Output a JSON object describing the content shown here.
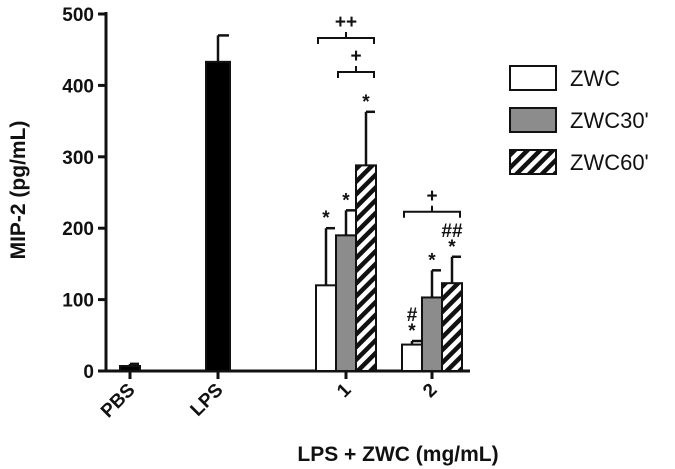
{
  "chart_data": {
    "type": "bar",
    "ylabel": "MIP-2 (pg/mL)",
    "xlabel": "LPS + ZWC (mg/mL)",
    "ylim": [
      0,
      500
    ],
    "yticks": [
      0,
      100,
      200,
      300,
      400,
      500
    ],
    "legend": {
      "placement": "right",
      "entries": [
        "ZWC",
        "ZWC30'",
        "ZWC60'"
      ]
    },
    "colors": {
      "ZWC": "#ffffff",
      "ZWC30'": "#8c8c8c",
      "ZWC60'": "hatched",
      "control": "#000000"
    },
    "groups": [
      {
        "label": "PBS",
        "bars": [
          {
            "series": "control",
            "value": 7,
            "error": 3
          }
        ]
      },
      {
        "label": "LPS",
        "bars": [
          {
            "series": "control",
            "value": 433,
            "error": 37
          }
        ]
      },
      {
        "label": "1",
        "bars": [
          {
            "series": "ZWC",
            "value": 120,
            "error": 80,
            "marks": [
              "*"
            ]
          },
          {
            "series": "ZWC30'",
            "value": 190,
            "error": 35,
            "marks": [
              "*"
            ]
          },
          {
            "series": "ZWC60'",
            "value": 288,
            "error": 75,
            "marks": [
              "*"
            ]
          }
        ],
        "brackets": [
          {
            "from": "ZWC",
            "to": "ZWC60'",
            "label": "++"
          },
          {
            "from": "ZWC30'",
            "to": "ZWC60'",
            "label": "+"
          }
        ]
      },
      {
        "label": "2",
        "bars": [
          {
            "series": "ZWC",
            "value": 37,
            "error": 5,
            "marks": [
              "*",
              "#"
            ]
          },
          {
            "series": "ZWC30'",
            "value": 103,
            "error": 38,
            "marks": [
              "*"
            ]
          },
          {
            "series": "ZWC60'",
            "value": 123,
            "error": 37,
            "marks": [
              "*",
              "##"
            ]
          }
        ],
        "brackets": [
          {
            "from": "ZWC",
            "to": "ZWC60'",
            "label": "+"
          }
        ]
      }
    ]
  }
}
